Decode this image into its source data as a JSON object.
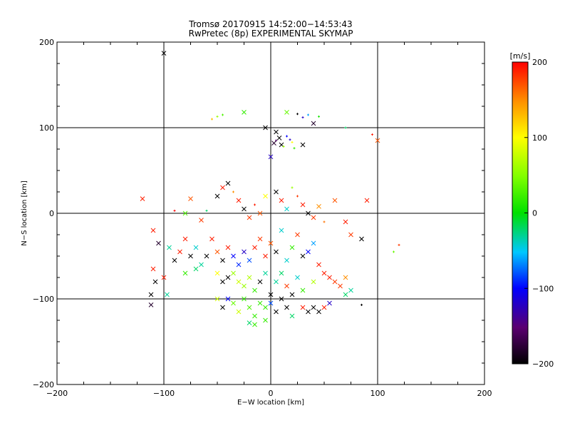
{
  "chart_data": {
    "type": "scatter",
    "title": "Tromsø 20170915  14:52:00−14:53:43",
    "subtitle": "RwPretec (8p) EXPERIMENTAL SKYMAP",
    "xlabel": "E−W location [km]",
    "ylabel": "N−S location [km]",
    "xlim": [
      -200,
      200
    ],
    "ylim": [
      -200,
      200
    ],
    "x_ticks": [
      "−200",
      "−100",
      "0",
      "100",
      "200"
    ],
    "y_ticks": [
      "−200",
      "−100",
      "0",
      "100",
      "200"
    ],
    "x_tick_values": [
      -200,
      -100,
      0,
      100,
      200
    ],
    "y_tick_values": [
      -200,
      -100,
      0,
      100,
      200
    ],
    "grid": true,
    "colorbar": {
      "label": "[m/s]",
      "range": [
        -200,
        200
      ],
      "ticks": [
        "200",
        "100",
        "0",
        "−100",
        "−200"
      ],
      "tick_values": [
        200,
        100,
        0,
        -100,
        -200
      ]
    },
    "points": [
      {
        "x": -100,
        "y": 187,
        "v": -200,
        "m": "x"
      },
      {
        "x": -55,
        "y": 110,
        "v": 130,
        "m": "+"
      },
      {
        "x": -50,
        "y": 113,
        "v": 60,
        "m": "+"
      },
      {
        "x": -45,
        "y": 115,
        "v": 30,
        "m": "+"
      },
      {
        "x": -25,
        "y": 118,
        "v": 20,
        "m": "x"
      },
      {
        "x": 35,
        "y": 115,
        "v": -60,
        "m": "+"
      },
      {
        "x": 45,
        "y": 113,
        "v": 10,
        "m": "+"
      },
      {
        "x": 25,
        "y": 116,
        "v": -200,
        "m": "+"
      },
      {
        "x": 30,
        "y": 112,
        "v": -120,
        "m": "+"
      },
      {
        "x": 15,
        "y": 118,
        "v": 40,
        "m": "x"
      },
      {
        "x": 40,
        "y": 105,
        "v": -180,
        "m": "x"
      },
      {
        "x": 70,
        "y": 100,
        "v": -20,
        "m": "+"
      },
      {
        "x": 5,
        "y": 85,
        "v": -150,
        "m": "+"
      },
      {
        "x": 10,
        "y": 80,
        "v": -200,
        "m": "x"
      },
      {
        "x": 15,
        "y": 90,
        "v": -100,
        "m": "+"
      },
      {
        "x": 20,
        "y": 83,
        "v": 100,
        "m": "+"
      },
      {
        "x": 8,
        "y": 88,
        "v": -200,
        "m": "x"
      },
      {
        "x": 12,
        "y": 78,
        "v": 60,
        "m": "+"
      },
      {
        "x": 18,
        "y": 86,
        "v": -120,
        "m": "+"
      },
      {
        "x": 3,
        "y": 82,
        "v": -180,
        "m": "x"
      },
      {
        "x": 30,
        "y": 80,
        "v": -200,
        "m": "x"
      },
      {
        "x": 22,
        "y": 76,
        "v": 20,
        "m": "+"
      },
      {
        "x": 100,
        "y": 85,
        "v": 170,
        "m": "x"
      },
      {
        "x": 95,
        "y": 92,
        "v": 190,
        "m": "+"
      },
      {
        "x": 0,
        "y": 66,
        "v": -120,
        "m": "x"
      },
      {
        "x": -5,
        "y": 100,
        "v": -200,
        "m": "x"
      },
      {
        "x": 5,
        "y": 95,
        "v": -200,
        "m": "x"
      },
      {
        "x": -120,
        "y": 17,
        "v": 190,
        "m": "x"
      },
      {
        "x": -90,
        "y": 3,
        "v": 200,
        "m": "+"
      },
      {
        "x": -80,
        "y": 0,
        "v": 30,
        "m": "x"
      },
      {
        "x": -75,
        "y": 17,
        "v": 170,
        "m": "x"
      },
      {
        "x": -65,
        "y": -8,
        "v": 180,
        "m": "x"
      },
      {
        "x": -60,
        "y": 3,
        "v": -20,
        "m": "+"
      },
      {
        "x": -50,
        "y": 20,
        "v": -200,
        "m": "x"
      },
      {
        "x": -45,
        "y": 30,
        "v": 190,
        "m": "x"
      },
      {
        "x": -40,
        "y": 35,
        "v": -200,
        "m": "x"
      },
      {
        "x": -35,
        "y": 25,
        "v": 150,
        "m": "+"
      },
      {
        "x": -30,
        "y": 15,
        "v": 190,
        "m": "x"
      },
      {
        "x": -25,
        "y": 5,
        "v": -200,
        "m": "x"
      },
      {
        "x": -20,
        "y": -5,
        "v": 180,
        "m": "x"
      },
      {
        "x": -15,
        "y": 10,
        "v": 190,
        "m": "+"
      },
      {
        "x": -10,
        "y": 0,
        "v": 170,
        "m": "x"
      },
      {
        "x": -5,
        "y": 20,
        "v": 100,
        "m": "x"
      },
      {
        "x": 5,
        "y": 25,
        "v": -200,
        "m": "x"
      },
      {
        "x": 10,
        "y": 15,
        "v": 190,
        "m": "x"
      },
      {
        "x": 15,
        "y": 5,
        "v": -40,
        "m": "x"
      },
      {
        "x": 20,
        "y": 30,
        "v": 60,
        "m": "+"
      },
      {
        "x": 25,
        "y": 20,
        "v": 180,
        "m": "+"
      },
      {
        "x": 30,
        "y": 10,
        "v": 190,
        "m": "x"
      },
      {
        "x": 35,
        "y": 0,
        "v": -200,
        "m": "x"
      },
      {
        "x": 40,
        "y": -5,
        "v": 180,
        "m": "x"
      },
      {
        "x": 45,
        "y": 8,
        "v": 150,
        "m": "x"
      },
      {
        "x": 50,
        "y": -10,
        "v": 160,
        "m": "+"
      },
      {
        "x": 60,
        "y": 15,
        "v": 170,
        "m": "x"
      },
      {
        "x": 70,
        "y": -10,
        "v": 190,
        "m": "x"
      },
      {
        "x": 75,
        "y": -25,
        "v": 180,
        "m": "x"
      },
      {
        "x": 85,
        "y": -30,
        "v": -200,
        "m": "x"
      },
      {
        "x": 90,
        "y": 15,
        "v": 190,
        "m": "x"
      },
      {
        "x": -110,
        "y": -20,
        "v": 190,
        "m": "x"
      },
      {
        "x": -105,
        "y": -35,
        "v": -180,
        "m": "x"
      },
      {
        "x": -95,
        "y": -40,
        "v": -30,
        "m": "x"
      },
      {
        "x": -90,
        "y": -55,
        "v": -200,
        "m": "x"
      },
      {
        "x": -85,
        "y": -45,
        "v": 190,
        "m": "x"
      },
      {
        "x": -80,
        "y": -30,
        "v": 190,
        "m": "x"
      },
      {
        "x": -75,
        "y": -50,
        "v": -200,
        "m": "x"
      },
      {
        "x": -70,
        "y": -40,
        "v": -40,
        "m": "x"
      },
      {
        "x": -65,
        "y": -60,
        "v": -30,
        "m": "x"
      },
      {
        "x": -60,
        "y": -50,
        "v": -200,
        "m": "x"
      },
      {
        "x": -55,
        "y": -30,
        "v": 190,
        "m": "x"
      },
      {
        "x": -50,
        "y": -45,
        "v": 170,
        "m": "x"
      },
      {
        "x": -45,
        "y": -55,
        "v": -200,
        "m": "x"
      },
      {
        "x": -40,
        "y": -40,
        "v": 190,
        "m": "x"
      },
      {
        "x": -35,
        "y": -50,
        "v": -100,
        "m": "x"
      },
      {
        "x": -30,
        "y": -60,
        "v": -90,
        "m": "x"
      },
      {
        "x": -25,
        "y": -45,
        "v": -120,
        "m": "x"
      },
      {
        "x": -20,
        "y": -55,
        "v": -80,
        "m": "x"
      },
      {
        "x": -15,
        "y": -40,
        "v": 190,
        "m": "x"
      },
      {
        "x": -10,
        "y": -30,
        "v": 180,
        "m": "x"
      },
      {
        "x": -5,
        "y": -50,
        "v": 190,
        "m": "x"
      },
      {
        "x": 0,
        "y": -35,
        "v": 170,
        "m": "x"
      },
      {
        "x": 5,
        "y": -45,
        "v": -200,
        "m": "x"
      },
      {
        "x": 10,
        "y": -20,
        "v": -40,
        "m": "x"
      },
      {
        "x": 15,
        "y": -55,
        "v": -40,
        "m": "x"
      },
      {
        "x": 20,
        "y": -40,
        "v": 20,
        "m": "x"
      },
      {
        "x": 25,
        "y": -25,
        "v": 180,
        "m": "x"
      },
      {
        "x": 30,
        "y": -50,
        "v": -200,
        "m": "x"
      },
      {
        "x": 35,
        "y": -45,
        "v": -100,
        "m": "x"
      },
      {
        "x": 40,
        "y": -35,
        "v": -60,
        "m": "x"
      },
      {
        "x": 45,
        "y": -60,
        "v": 190,
        "m": "x"
      },
      {
        "x": 50,
        "y": -70,
        "v": 190,
        "m": "x"
      },
      {
        "x": 55,
        "y": -75,
        "v": 190,
        "m": "x"
      },
      {
        "x": 60,
        "y": -80,
        "v": 180,
        "m": "x"
      },
      {
        "x": 65,
        "y": -85,
        "v": 180,
        "m": "x"
      },
      {
        "x": 70,
        "y": -75,
        "v": 150,
        "m": "x"
      },
      {
        "x": 75,
        "y": -90,
        "v": -30,
        "m": "x"
      },
      {
        "x": -110,
        "y": -65,
        "v": 190,
        "m": "x"
      },
      {
        "x": -108,
        "y": -80,
        "v": -200,
        "m": "x"
      },
      {
        "x": -100,
        "y": -75,
        "v": 190,
        "m": "x"
      },
      {
        "x": -97,
        "y": -95,
        "v": -30,
        "m": "x"
      },
      {
        "x": -112,
        "y": -95,
        "v": -200,
        "m": "x"
      },
      {
        "x": -112,
        "y": -107,
        "v": -180,
        "m": "x"
      },
      {
        "x": -80,
        "y": -70,
        "v": 20,
        "m": "x"
      },
      {
        "x": -70,
        "y": -65,
        "v": -20,
        "m": "x"
      },
      {
        "x": -50,
        "y": -70,
        "v": 100,
        "m": "x"
      },
      {
        "x": -45,
        "y": -80,
        "v": -200,
        "m": "x"
      },
      {
        "x": -40,
        "y": -75,
        "v": -200,
        "m": "x"
      },
      {
        "x": -35,
        "y": -70,
        "v": 60,
        "m": "x"
      },
      {
        "x": -30,
        "y": -80,
        "v": 80,
        "m": "x"
      },
      {
        "x": -25,
        "y": -85,
        "v": 60,
        "m": "x"
      },
      {
        "x": -20,
        "y": -75,
        "v": 70,
        "m": "x"
      },
      {
        "x": -15,
        "y": -90,
        "v": 20,
        "m": "x"
      },
      {
        "x": -10,
        "y": -80,
        "v": -200,
        "m": "x"
      },
      {
        "x": -5,
        "y": -70,
        "v": -30,
        "m": "x"
      },
      {
        "x": 0,
        "y": -95,
        "v": -200,
        "m": "x"
      },
      {
        "x": 5,
        "y": -80,
        "v": -30,
        "m": "x"
      },
      {
        "x": 10,
        "y": -70,
        "v": -20,
        "m": "x"
      },
      {
        "x": 15,
        "y": -85,
        "v": 180,
        "m": "x"
      },
      {
        "x": 20,
        "y": -95,
        "v": -200,
        "m": "x"
      },
      {
        "x": 25,
        "y": -75,
        "v": -40,
        "m": "x"
      },
      {
        "x": 30,
        "y": -90,
        "v": 20,
        "m": "x"
      },
      {
        "x": 40,
        "y": -80,
        "v": 70,
        "m": "x"
      },
      {
        "x": -50,
        "y": -100,
        "v": 80,
        "m": "x"
      },
      {
        "x": -45,
        "y": -110,
        "v": -200,
        "m": "x"
      },
      {
        "x": -40,
        "y": -100,
        "v": -100,
        "m": "x"
      },
      {
        "x": -35,
        "y": -105,
        "v": 40,
        "m": "x"
      },
      {
        "x": -30,
        "y": -115,
        "v": 80,
        "m": "x"
      },
      {
        "x": -25,
        "y": -100,
        "v": 20,
        "m": "x"
      },
      {
        "x": -20,
        "y": -110,
        "v": 30,
        "m": "x"
      },
      {
        "x": -15,
        "y": -120,
        "v": 20,
        "m": "x"
      },
      {
        "x": -10,
        "y": -105,
        "v": 20,
        "m": "x"
      },
      {
        "x": -5,
        "y": -110,
        "v": 20,
        "m": "x"
      },
      {
        "x": 0,
        "y": -105,
        "v": -80,
        "m": "x"
      },
      {
        "x": 5,
        "y": -115,
        "v": -200,
        "m": "x"
      },
      {
        "x": 10,
        "y": -100,
        "v": -200,
        "m": "x"
      },
      {
        "x": 15,
        "y": -110,
        "v": -200,
        "m": "x"
      },
      {
        "x": 20,
        "y": -120,
        "v": -20,
        "m": "x"
      },
      {
        "x": 30,
        "y": -110,
        "v": 190,
        "m": "x"
      },
      {
        "x": 35,
        "y": -115,
        "v": -200,
        "m": "x"
      },
      {
        "x": 40,
        "y": -110,
        "v": -200,
        "m": "x"
      },
      {
        "x": 45,
        "y": -115,
        "v": -200,
        "m": "x"
      },
      {
        "x": 50,
        "y": -110,
        "v": 190,
        "m": "x"
      },
      {
        "x": 55,
        "y": -105,
        "v": -120,
        "m": "x"
      },
      {
        "x": 70,
        "y": -95,
        "v": -20,
        "m": "x"
      },
      {
        "x": 85,
        "y": -107,
        "v": -200,
        "m": "+"
      },
      {
        "x": -15,
        "y": -130,
        "v": 20,
        "m": "x"
      },
      {
        "x": -5,
        "y": -125,
        "v": 20,
        "m": "x"
      },
      {
        "x": -20,
        "y": -128,
        "v": -20,
        "m": "x"
      },
      {
        "x": 115,
        "y": -45,
        "v": 40,
        "m": "+"
      },
      {
        "x": 120,
        "y": -37,
        "v": 180,
        "m": "+"
      }
    ]
  }
}
